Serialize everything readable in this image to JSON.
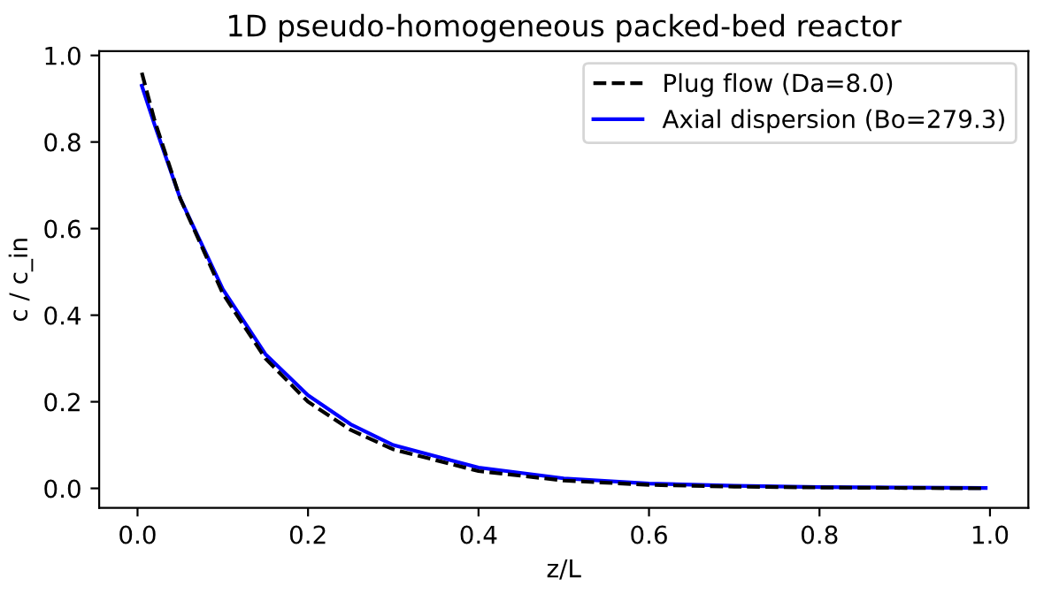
{
  "chart_data": {
    "type": "line",
    "title": "1D pseudo-homogeneous packed-bed reactor",
    "xlabel": "z/L",
    "ylabel": "c / c_in",
    "x": [
      0.005,
      0.02,
      0.05,
      0.1,
      0.15,
      0.2,
      0.25,
      0.3,
      0.4,
      0.5,
      0.6,
      0.7,
      0.8,
      0.9,
      0.995
    ],
    "series": [
      {
        "name": "Plug flow (Da=8.0)",
        "color": "#000000",
        "line_style": "dashed",
        "values": [
          0.96,
          0.85,
          0.67,
          0.45,
          0.3,
          0.2,
          0.135,
          0.09,
          0.04,
          0.018,
          0.008,
          0.004,
          0.002,
          0.001,
          0.0
        ]
      },
      {
        "name": "Axial dispersion (Bo=279.3)",
        "color": "#0000ff",
        "line_style": "solid",
        "values": [
          0.93,
          0.84,
          0.67,
          0.46,
          0.31,
          0.215,
          0.148,
          0.1,
          0.048,
          0.023,
          0.011,
          0.006,
          0.003,
          0.002,
          0.001
        ]
      }
    ],
    "xlim": [
      -0.045,
      1.045
    ],
    "ylim": [
      -0.045,
      1.01
    ],
    "xticks": [
      {
        "value": 0,
        "label": "0.0"
      },
      0.2,
      0.4,
      0.6,
      0.8,
      {
        "value": 1,
        "label": "1.0"
      }
    ],
    "yticks": [
      {
        "value": 0,
        "label": "0.0"
      },
      0.2,
      0.4,
      0.6,
      0.8,
      {
        "value": 1,
        "label": "1.0"
      }
    ],
    "legend": "top right",
    "grid": false
  }
}
